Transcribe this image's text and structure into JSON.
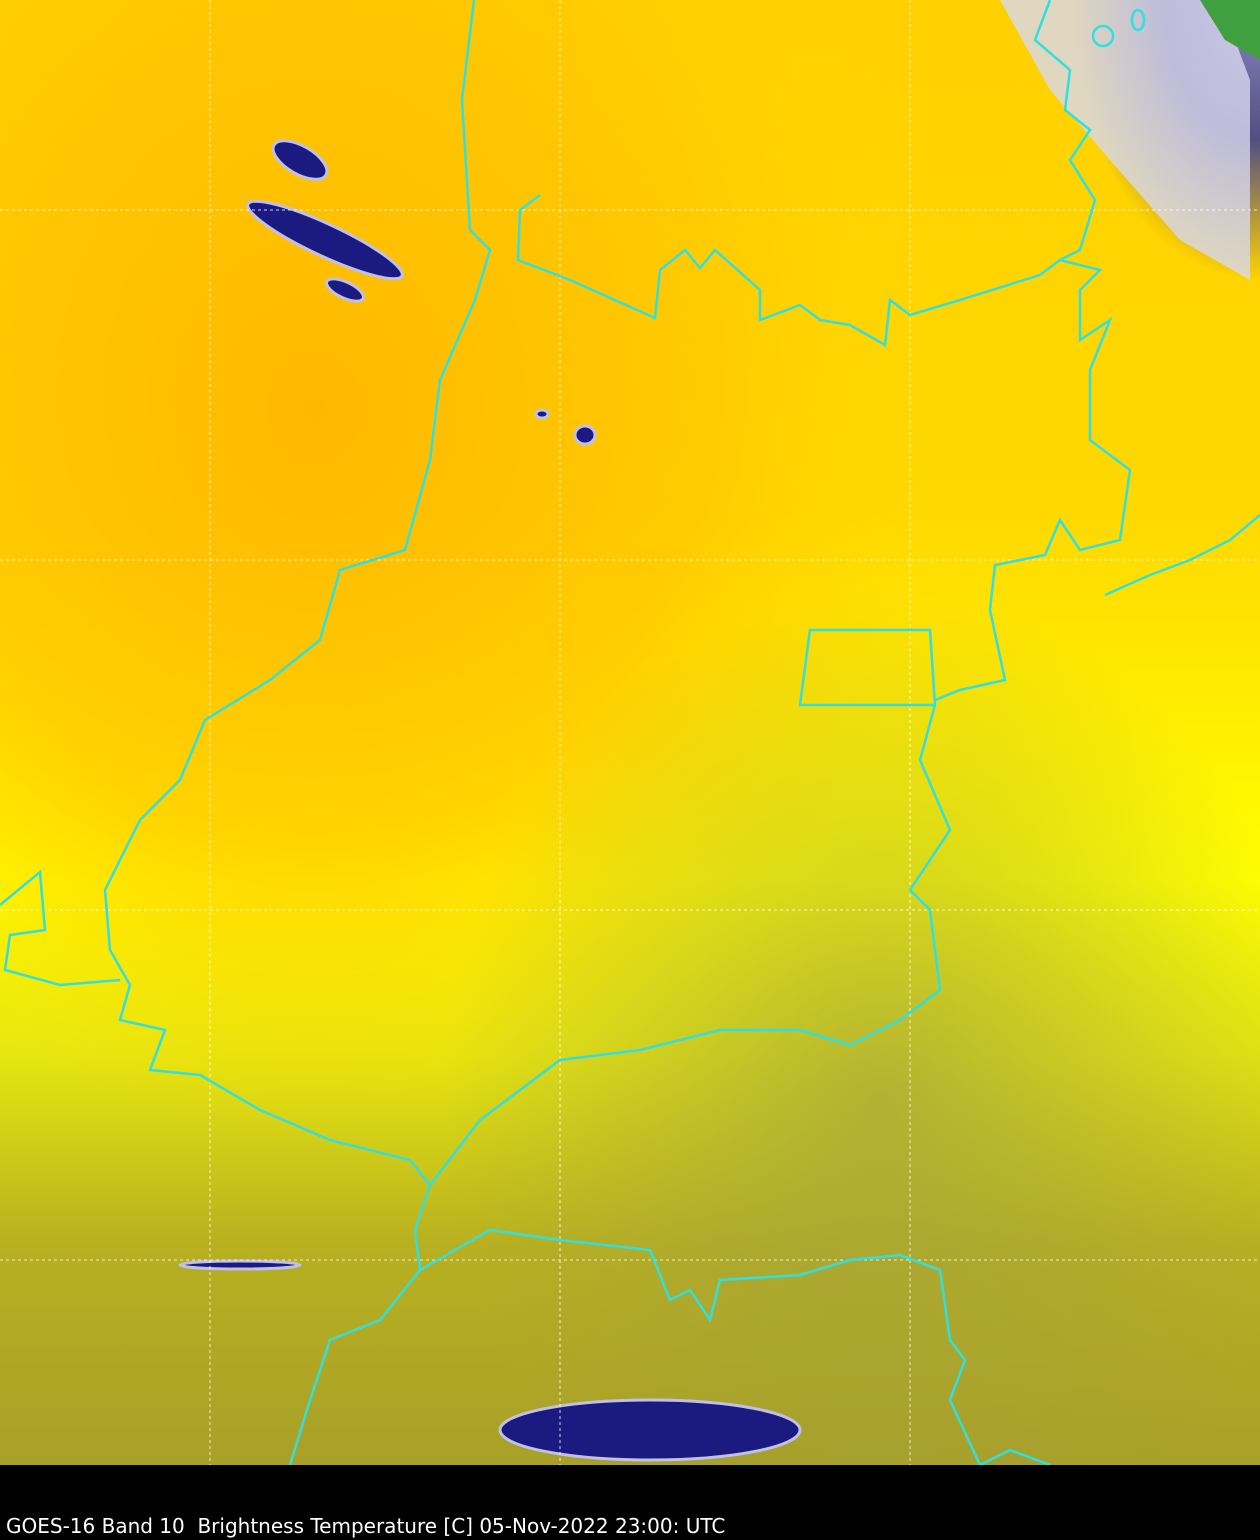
{
  "caption": "GOES-16 Band 10  Brightness Temperature [C] 05-Nov-2022 23:00: UTC",
  "colors": {
    "warm": "#ffc000",
    "mid": "#ffff00",
    "cool": "#a8a020",
    "cloud": "#1a1a80",
    "cloud_top": "#e8e8f8",
    "vegetation": "#40a040",
    "borders": "#30e0e0",
    "grid": "#ffffff"
  },
  "layers": [
    "brightness-temperature",
    "state-borders",
    "lat-lon-grid"
  ]
}
